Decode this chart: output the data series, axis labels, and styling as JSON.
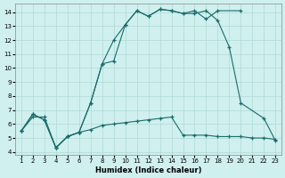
{
  "xlabel": "Humidex (Indice chaleur)",
  "xlim": [
    0.5,
    23.5
  ],
  "ylim": [
    3.8,
    14.6
  ],
  "xticks": [
    1,
    2,
    3,
    4,
    5,
    6,
    7,
    8,
    9,
    10,
    11,
    12,
    13,
    14,
    15,
    16,
    17,
    18,
    19,
    20,
    21,
    22,
    23
  ],
  "yticks": [
    4,
    5,
    6,
    7,
    8,
    9,
    10,
    11,
    12,
    13,
    14
  ],
  "bg_color": "#cff0ee",
  "grid_color": "#b0d8d5",
  "line_color": "#1a6b6b",
  "line1_x": [
    1,
    2,
    3,
    4,
    5,
    6,
    7,
    8,
    9,
    10,
    11,
    12,
    13,
    14,
    15,
    16,
    17,
    18,
    20
  ],
  "line1_y": [
    5.5,
    6.5,
    6.5,
    4.3,
    5.1,
    5.4,
    7.5,
    10.3,
    12.0,
    13.1,
    14.1,
    13.7,
    14.2,
    14.1,
    13.9,
    14.1,
    13.5,
    14.1,
    14.1
  ],
  "line2_x": [
    1,
    2,
    3,
    4,
    5,
    6,
    7,
    8,
    9,
    10,
    11,
    12,
    13,
    14,
    15,
    16,
    17,
    18,
    19,
    20,
    22,
    23
  ],
  "line2_y": [
    5.5,
    6.7,
    6.3,
    4.3,
    5.1,
    5.4,
    7.5,
    10.3,
    10.5,
    13.1,
    14.1,
    13.7,
    14.2,
    14.1,
    13.9,
    13.9,
    14.1,
    13.4,
    11.5,
    7.5,
    6.4,
    4.8
  ],
  "line3_x": [
    1,
    2,
    3,
    4,
    5,
    6,
    7,
    8,
    9,
    10,
    11,
    12,
    13,
    14,
    15,
    16,
    17,
    18,
    19,
    20,
    21,
    22,
    23
  ],
  "line3_y": [
    5.5,
    6.7,
    6.3,
    4.3,
    5.1,
    5.4,
    5.6,
    5.9,
    6.0,
    6.1,
    6.2,
    6.3,
    6.4,
    6.5,
    5.2,
    5.2,
    5.2,
    5.1,
    5.1,
    5.1,
    5.0,
    5.0,
    4.9
  ]
}
